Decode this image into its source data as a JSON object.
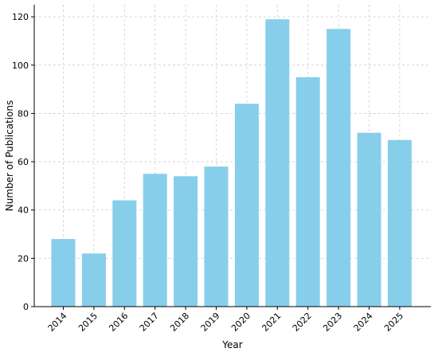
{
  "chart_data": {
    "type": "bar",
    "title": "",
    "xlabel": "Year",
    "ylabel": "Number of Publications",
    "categories": [
      "2014",
      "2015",
      "2016",
      "2017",
      "2018",
      "2019",
      "2020",
      "2021",
      "2022",
      "2023",
      "2024",
      "2025"
    ],
    "values": [
      28,
      22,
      44,
      55,
      54,
      58,
      84,
      119,
      95,
      115,
      72,
      69
    ],
    "ylim": [
      0,
      125
    ],
    "yticks": [
      0,
      20,
      40,
      60,
      80,
      100,
      120
    ],
    "grid": true,
    "bar_color": "#87CEEB",
    "grid_color": "#cccccc",
    "x_tick_rotation": "45 degrees"
  }
}
